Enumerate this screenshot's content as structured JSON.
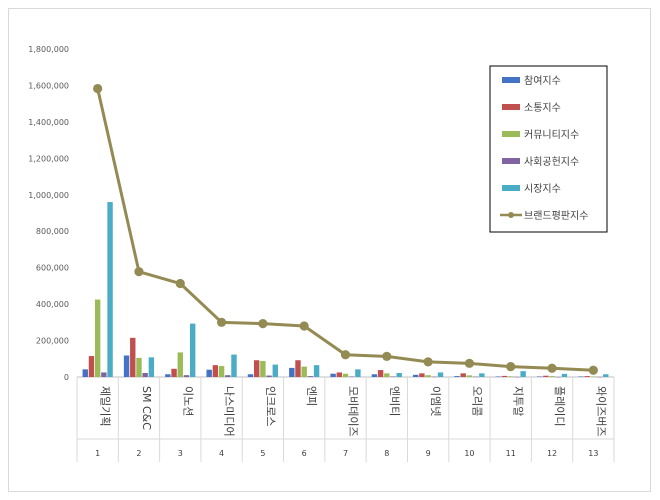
{
  "chart_data": {
    "type": "bar",
    "x": [
      "1",
      "2",
      "3",
      "4",
      "5",
      "6",
      "7",
      "8",
      "9",
      "10",
      "11",
      "12",
      "13"
    ],
    "categories": [
      "제일기획",
      "SM C&C",
      "이노션",
      "나스미디어",
      "인크로스",
      "엔피",
      "모비데이즈",
      "엔비티",
      "이엠넷",
      "오리콤",
      "지투알",
      "플레이디",
      "와이즈버즈"
    ],
    "ylim": [
      0,
      1800000
    ],
    "yticks": [
      0,
      200000,
      400000,
      600000,
      800000,
      1000000,
      1200000,
      1400000,
      1600000,
      1800000
    ],
    "ytick_labels": [
      "0",
      "200,000",
      "400,000",
      "600,000",
      "800,000",
      "1,000,000",
      "1,200,000",
      "1,400,000",
      "1,600,000",
      "1,800,000"
    ],
    "grid": false,
    "legend_position": "top-right",
    "series": [
      {
        "name": "참여지수",
        "color": "#4472c4",
        "type": "bar",
        "values": [
          42000,
          118000,
          15000,
          40000,
          15000,
          50000,
          18000,
          15000,
          12000,
          5000,
          3000,
          3000,
          3000
        ]
      },
      {
        "name": "소통지수",
        "color": "#c0504d",
        "type": "bar",
        "values": [
          115000,
          215000,
          45000,
          65000,
          92000,
          92000,
          25000,
          38000,
          20000,
          20000,
          6000,
          7000,
          5000
        ]
      },
      {
        "name": "커뮤니티지수",
        "color": "#9bbb59",
        "type": "bar",
        "values": [
          425000,
          105000,
          135000,
          60000,
          88000,
          57000,
          18000,
          20000,
          10000,
          9000,
          4000,
          5000,
          3000
        ]
      },
      {
        "name": "사회공헌지수",
        "color": "#8064a2",
        "type": "bar",
        "values": [
          25000,
          22000,
          10000,
          10000,
          8000,
          5000,
          3000,
          3000,
          2000,
          2000,
          1000,
          1000,
          1000
        ]
      },
      {
        "name": "시장지수",
        "color": "#4bacc6",
        "type": "bar",
        "values": [
          960000,
          108000,
          293000,
          123000,
          68000,
          65000,
          42000,
          22000,
          25000,
          20000,
          32000,
          17000,
          15000
        ]
      },
      {
        "name": "브랜드평판지수",
        "color": "#948a54",
        "type": "line",
        "values": [
          1583000,
          578000,
          513000,
          300000,
          293000,
          280000,
          122000,
          113000,
          83000,
          75000,
          57000,
          48000,
          37000
        ]
      }
    ]
  }
}
